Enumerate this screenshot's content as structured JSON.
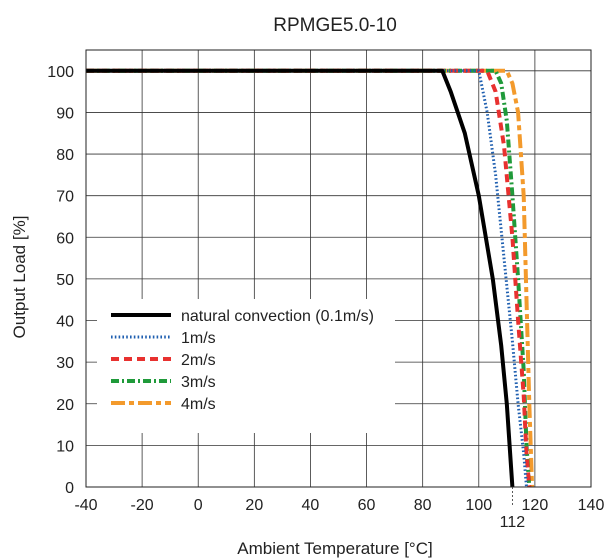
{
  "chart_data": {
    "type": "line",
    "title": "RPMGE5.0-10",
    "xlabel": "Ambient Temperature [°C]",
    "ylabel": "Output Load [%]",
    "xlim": [
      -40,
      140
    ],
    "ylim": [
      0,
      105
    ],
    "x_ticks": [
      "-40",
      "-20",
      "0",
      "20",
      "40",
      "60",
      "80",
      "100",
      "120",
      "140"
    ],
    "y_ticks": [
      "0",
      "10",
      "20",
      "30",
      "40",
      "50",
      "60",
      "70",
      "80",
      "90",
      "100"
    ],
    "annotation": {
      "label": "112",
      "x": 112
    },
    "grid": true,
    "legend_position": "bottom-left",
    "series": [
      {
        "name": "natural convection (0.1m/s)",
        "color": "#000000",
        "dash": "solid",
        "x": [
          -40,
          87,
          90,
          95,
          100,
          105,
          108,
          110,
          111,
          112
        ],
        "y": [
          100,
          100,
          95,
          85,
          70,
          50,
          34,
          20,
          10,
          0
        ]
      },
      {
        "name": "1m/s",
        "color": "#1f5fb0",
        "dash": "dotted",
        "x": [
          -40,
          100,
          103,
          106,
          109,
          112,
          114,
          116,
          117
        ],
        "y": [
          100,
          100,
          90,
          75,
          55,
          35,
          20,
          8,
          0
        ]
      },
      {
        "name": "2m/s",
        "color": "#e8312f",
        "dash": "dashed",
        "x": [
          -40,
          103,
          106,
          109,
          112,
          114,
          116,
          117,
          118
        ],
        "y": [
          100,
          100,
          95,
          82,
          60,
          40,
          22,
          8,
          0
        ]
      },
      {
        "name": "3m/s",
        "color": "#1f9a3a",
        "dash": "dashdot",
        "x": [
          -40,
          106,
          108,
          110,
          112,
          114,
          116,
          117,
          118
        ],
        "y": [
          100,
          100,
          97,
          88,
          70,
          50,
          28,
          10,
          0
        ]
      },
      {
        "name": "4m/s",
        "color": "#f39a2c",
        "dash": "longdash",
        "x": [
          -40,
          110,
          112,
          114,
          116,
          117,
          118,
          119
        ],
        "y": [
          100,
          100,
          97,
          90,
          70,
          45,
          20,
          0
        ]
      }
    ]
  }
}
